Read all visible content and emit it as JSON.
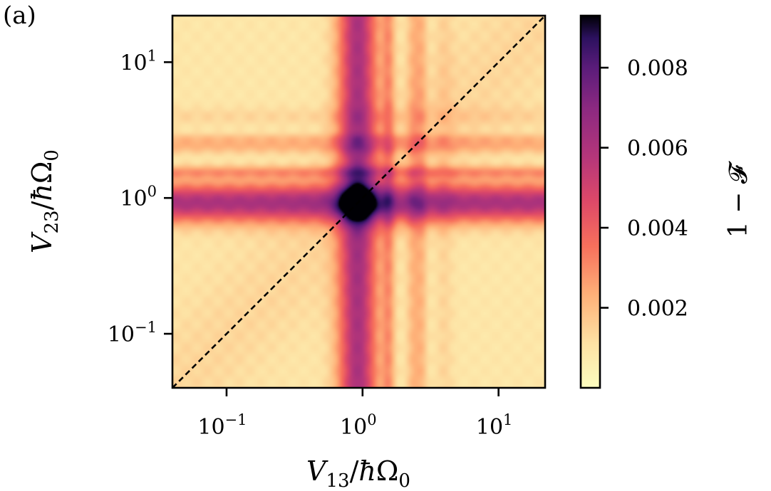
{
  "panel_label": "(a)",
  "chart_data": {
    "type": "heatmap",
    "title": "",
    "xlabel": "V_13/ħΩ_0",
    "ylabel": "V_23/ħΩ_0",
    "xscale": "log",
    "yscale": "log",
    "xlim": [
      0.04,
      22
    ],
    "ylim": [
      0.04,
      22
    ],
    "x_ticks": [
      {
        "value": 0.1,
        "base": "10",
        "exp": "−1"
      },
      {
        "value": 1,
        "base": "10",
        "exp": "0"
      },
      {
        "value": 10,
        "base": "10",
        "exp": "1"
      }
    ],
    "y_ticks": [
      {
        "value": 0.1,
        "base": "10",
        "exp": "−1"
      },
      {
        "value": 1,
        "base": "10",
        "exp": "0"
      },
      {
        "value": 10,
        "base": "10",
        "exp": "1"
      }
    ],
    "colormap": "magma_r",
    "colorbar": {
      "label": "1 − 𝓕",
      "range": [
        0.0,
        0.0093
      ],
      "ticks": [
        {
          "value": 0.002,
          "label": "0.002"
        },
        {
          "value": 0.004,
          "label": "0.004"
        },
        {
          "value": 0.006,
          "label": "0.006"
        },
        {
          "value": 0.008,
          "label": "0.008"
        }
      ]
    },
    "features": {
      "dark_band_center": 0.92,
      "peak_value": 0.0093,
      "peak_location": [
        0.92,
        0.92
      ],
      "secondary_bands": [
        1.6,
        2.4
      ]
    },
    "reference_line": {
      "style": "dashed",
      "description": "y = x diagonal",
      "color": "#000000"
    }
  }
}
